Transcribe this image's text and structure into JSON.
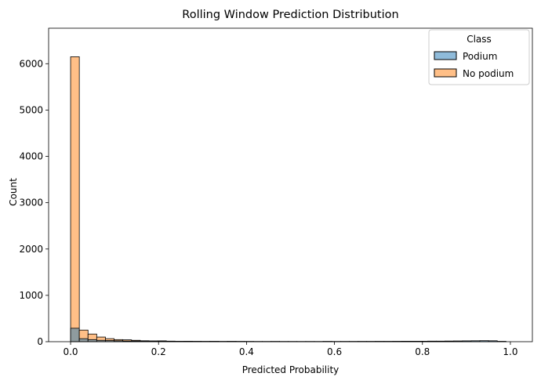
{
  "chart_data": {
    "type": "bar",
    "title": "Rolling Window Prediction Distribution",
    "xlabel": "Predicted Probability",
    "ylabel": "Count",
    "xlim": [
      -0.05,
      1.05
    ],
    "ylim": [
      0,
      6766
    ],
    "xticks": [
      0.0,
      0.2,
      0.4,
      0.6,
      0.8,
      1.0
    ],
    "xtick_labels": [
      "0.0",
      "0.2",
      "0.4",
      "0.6",
      "0.8",
      "1.0"
    ],
    "yticks": [
      0,
      1000,
      2000,
      3000,
      4000,
      5000,
      6000
    ],
    "ytick_labels": [
      "0",
      "1000",
      "2000",
      "3000",
      "4000",
      "5000",
      "6000"
    ],
    "bin_start": 0.0,
    "bin_width": 0.0198,
    "legend": {
      "title": "Class",
      "placement": "top-right"
    },
    "series": [
      {
        "name": "Podium",
        "color": "#1f77b4",
        "values": [
          290,
          65,
          45,
          30,
          25,
          20,
          15,
          15,
          12,
          10,
          12,
          8,
          8,
          7,
          6,
          6,
          6,
          5,
          6,
          5,
          5,
          5,
          5,
          5,
          5,
          5,
          5,
          5,
          5,
          6,
          5,
          6,
          6,
          7,
          7,
          8,
          8,
          9,
          10,
          10,
          10,
          12,
          12,
          14,
          16,
          18,
          20,
          22,
          20,
          8
        ]
      },
      {
        "name": "No podium",
        "color": "#ff7f0e",
        "values": [
          6150,
          250,
          165,
          100,
          65,
          45,
          40,
          30,
          20,
          17,
          18,
          12,
          8,
          10,
          8,
          6,
          8,
          4,
          7,
          4,
          3,
          2,
          2,
          3,
          2,
          2,
          1,
          2,
          1,
          3,
          2,
          2,
          2,
          2,
          2,
          2,
          2,
          1,
          2,
          2,
          1,
          2,
          2,
          2,
          1,
          2,
          2,
          2,
          2,
          1
        ]
      }
    ]
  }
}
